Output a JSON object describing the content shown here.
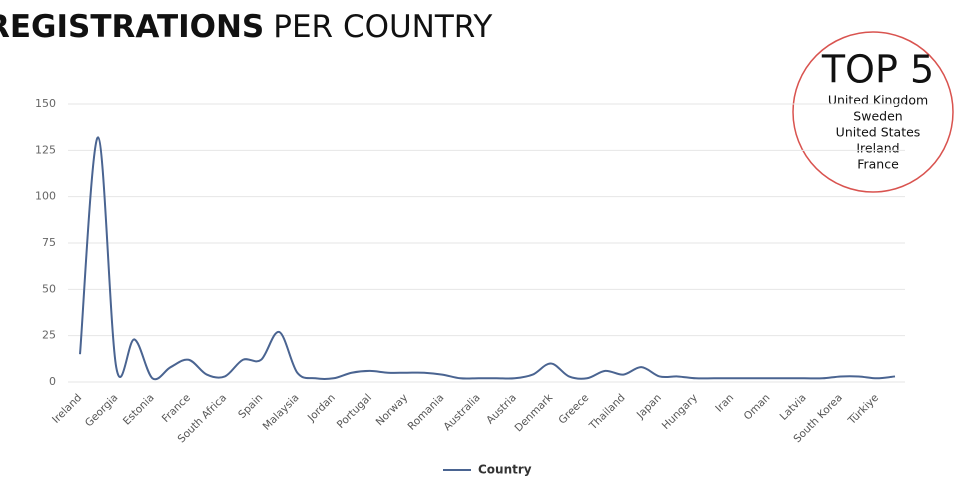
{
  "title_bold": "REGISTRATIONS",
  "title_rest": "PER COUNTRY",
  "top5": {
    "title": "TOP 5",
    "items": [
      "United Kingdom",
      "Sweden",
      "United States",
      "Ireland",
      "France"
    ]
  },
  "chart_data": {
    "type": "line",
    "categories": [
      "Ireland",
      null,
      "Georgia",
      null,
      "Estonia",
      null,
      "France",
      null,
      "South Africa",
      null,
      "Spain",
      null,
      "Malaysia",
      null,
      "Jordan",
      null,
      "Portugal",
      null,
      "Norway",
      null,
      "Romania",
      null,
      "Australia",
      null,
      "Austria",
      null,
      "Denmark",
      null,
      "Greece",
      null,
      "Thailand",
      null,
      "Japan",
      null,
      "Hungary",
      null,
      "Iran",
      null,
      "Oman",
      null,
      "Latvia",
      null,
      "South Korea",
      null,
      "Türkiye",
      null
    ],
    "series": [
      {
        "name": "Country",
        "color": "#4a6491",
        "values": [
          15,
          132,
          8,
          23,
          2,
          8,
          12,
          4,
          3,
          12,
          12,
          27,
          5,
          2,
          2,
          5,
          6,
          5,
          5,
          5,
          4,
          2,
          2,
          2,
          2,
          4,
          10,
          3,
          2,
          6,
          4,
          8,
          3,
          3,
          2,
          2,
          2,
          2,
          2,
          2,
          2,
          2,
          3,
          3,
          2,
          3
        ]
      }
    ],
    "ylim": [
      0,
      150
    ],
    "yticks": [
      0,
      25,
      50,
      75,
      100,
      125,
      150
    ],
    "grid": true,
    "legend": "bottom"
  }
}
